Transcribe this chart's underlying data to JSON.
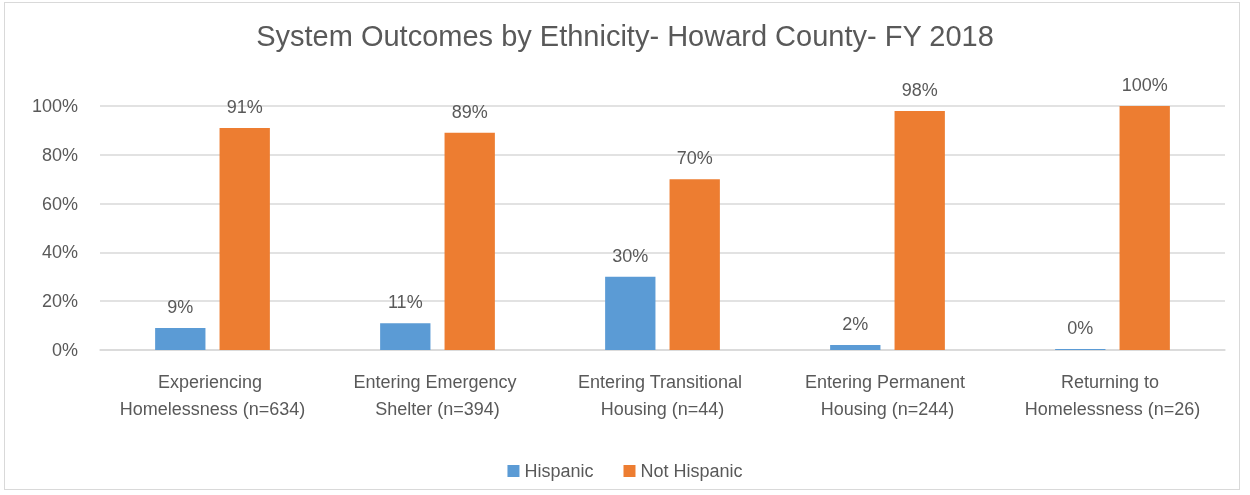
{
  "chart_data": {
    "type": "bar",
    "title": "System Outcomes by Ethnicity- Howard County- FY 2018",
    "categories": [
      "Experiencing Homelessness (n=634)",
      "Entering Emergency Shelter (n=394)",
      "Entering Transitional Housing (n=44)",
      "Entering Permanent Housing (n=244)",
      "Returning to Homelessness (n=26)"
    ],
    "series": [
      {
        "name": "Hispanic",
        "color": "#5b9bd5",
        "values": [
          9,
          11,
          30,
          2,
          0
        ],
        "value_labels": [
          "9%",
          "11%",
          "30%",
          "2%",
          "0%"
        ]
      },
      {
        "name": "Not Hispanic",
        "color": "#ed7d31",
        "values": [
          91,
          89,
          70,
          98,
          100
        ],
        "value_labels": [
          "91%",
          "89%",
          "70%",
          "98%",
          "100%"
        ]
      }
    ],
    "ylim": [
      0,
      100
    ],
    "yticks": [
      {
        "value": 0,
        "label": "0%"
      },
      {
        "value": 20,
        "label": "20%"
      },
      {
        "value": 40,
        "label": "40%"
      },
      {
        "value": 60,
        "label": "60%"
      },
      {
        "value": 80,
        "label": "80%"
      },
      {
        "value": 100,
        "label": "100%"
      }
    ],
    "grid": "y",
    "legend": "bottom"
  }
}
